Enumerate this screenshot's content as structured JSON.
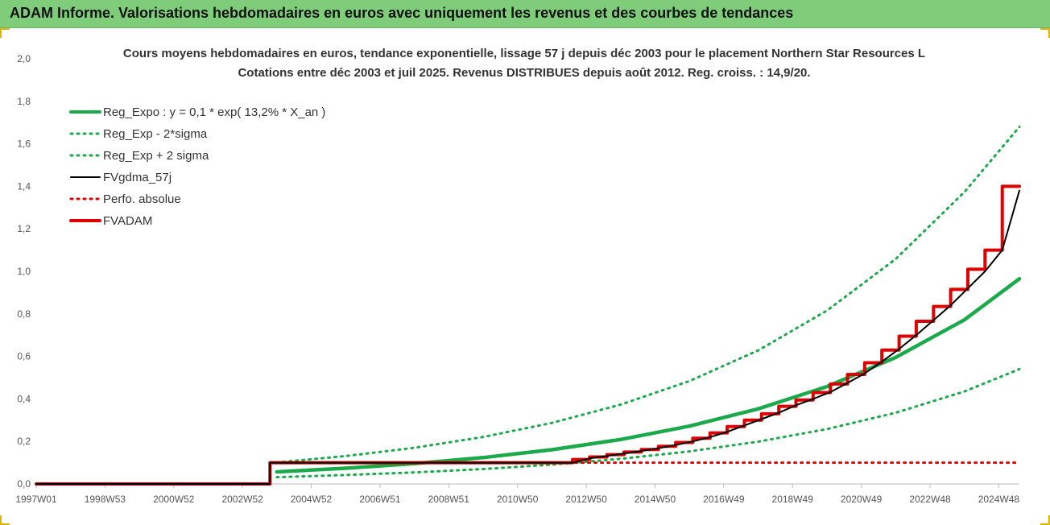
{
  "header": {
    "title": "ADAM Informe. Valorisations hebdomadaires en euros avec uniquement les revenus et des courbes de tendances",
    "background": "#7fcd7a"
  },
  "chart_data": {
    "type": "line",
    "title": "Cours moyens hebdomadaires en euros, tendance exponentielle, lissage 57 j depuis déc 2003 pour le placement Northern Star Resources L",
    "subtitle": "Cotations entre déc 2003 et juil 2025. Revenus DISTRIBUES depuis août 2012. Reg. croiss. : 14,9/20.",
    "xlabel": "",
    "ylabel": "",
    "ylim": [
      0,
      2.0
    ],
    "yticks": [
      "0,0",
      "0,2",
      "0,4",
      "0,6",
      "0,8",
      "1,0",
      "1,2",
      "1,4",
      "1,6",
      "1,8",
      "2,0"
    ],
    "xlim": [
      1997.0,
      2025.6
    ],
    "xticks": [
      {
        "label": "1997W01",
        "x": 1997.0
      },
      {
        "label": "1998W53",
        "x": 1999.0
      },
      {
        "label": "2000W52",
        "x": 2001.0
      },
      {
        "label": "2002W52",
        "x": 2003.0
      },
      {
        "label": "2004W52",
        "x": 2005.0
      },
      {
        "label": "2006W51",
        "x": 2007.0
      },
      {
        "label": "2008W51",
        "x": 2009.0
      },
      {
        "label": "2010W50",
        "x": 2011.0
      },
      {
        "label": "2012W50",
        "x": 2013.0
      },
      {
        "label": "2014W50",
        "x": 2015.0
      },
      {
        "label": "2016W49",
        "x": 2017.0
      },
      {
        "label": "2018W49",
        "x": 2019.0
      },
      {
        "label": "2020W49",
        "x": 2021.0
      },
      {
        "label": "2022W48",
        "x": 2023.0
      },
      {
        "label": "2024W48",
        "x": 2025.0
      }
    ],
    "grid": false,
    "legend_position": "top-left",
    "series": [
      {
        "name": "Reg_Expo : y = 0,1 * exp( 13,2% *  X_an )",
        "color": "#1aaa4a",
        "style": "solid-thick",
        "x": [
          2004.0,
          2006.0,
          2008.0,
          2010.0,
          2012.0,
          2014.0,
          2016.0,
          2018.0,
          2020.0,
          2022.0,
          2024.0,
          2025.6
        ],
        "y": [
          0.057,
          0.074,
          0.096,
          0.124,
          0.161,
          0.209,
          0.272,
          0.353,
          0.458,
          0.595,
          0.772,
          0.965
        ]
      },
      {
        "name": "Reg_Exp - 2*sigma",
        "color": "#1aaa4a",
        "style": "dotted",
        "x": [
          2004.0,
          2006.0,
          2008.0,
          2010.0,
          2012.0,
          2014.0,
          2016.0,
          2018.0,
          2020.0,
          2022.0,
          2024.0,
          2025.6
        ],
        "y": [
          0.032,
          0.042,
          0.054,
          0.07,
          0.091,
          0.118,
          0.153,
          0.199,
          0.258,
          0.335,
          0.435,
          0.54
        ]
      },
      {
        "name": "Reg_Exp + 2 sigma",
        "color": "#1aaa4a",
        "style": "dotted",
        "x": [
          2004.0,
          2006.0,
          2008.0,
          2010.0,
          2012.0,
          2014.0,
          2016.0,
          2018.0,
          2020.0,
          2022.0,
          2024.0,
          2025.6
        ],
        "y": [
          0.101,
          0.131,
          0.17,
          0.221,
          0.287,
          0.373,
          0.484,
          0.628,
          0.815,
          1.058,
          1.373,
          1.68
        ]
      },
      {
        "name": "FVgdma_57j",
        "color": "#000000",
        "style": "solid",
        "x": [
          1997.0,
          2003.8,
          2003.8,
          2012.6,
          2013.1,
          2013.6,
          2014.1,
          2014.6,
          2015.1,
          2015.6,
          2016.1,
          2016.6,
          2017.1,
          2017.6,
          2018.1,
          2018.6,
          2019.1,
          2019.6,
          2020.1,
          2020.6,
          2021.1,
          2021.6,
          2022.1,
          2022.6,
          2023.1,
          2023.6,
          2024.1,
          2024.6,
          2025.1,
          2025.6
        ],
        "y": [
          0.0,
          0.0,
          0.1,
          0.1,
          0.12,
          0.132,
          0.143,
          0.155,
          0.168,
          0.183,
          0.2,
          0.22,
          0.245,
          0.275,
          0.305,
          0.335,
          0.37,
          0.4,
          0.432,
          0.475,
          0.52,
          0.575,
          0.635,
          0.7,
          0.77,
          0.84,
          0.92,
          1.0,
          1.1,
          1.38
        ]
      },
      {
        "name": "Perfo. absolue",
        "color": "#e00000",
        "style": "dotted",
        "x": [
          1997.0,
          2003.8,
          2003.8,
          2012.6,
          2025.6
        ],
        "y": [
          0.0,
          0.0,
          0.1,
          0.1,
          0.1
        ]
      },
      {
        "name": "FVADAM",
        "color": "#e00000",
        "style": "step-thick",
        "x": [
          1997.0,
          2003.8,
          2003.8,
          2012.6,
          2012.6,
          2013.1,
          2013.1,
          2013.6,
          2013.6,
          2014.1,
          2014.1,
          2014.6,
          2014.6,
          2015.1,
          2015.1,
          2015.6,
          2015.6,
          2016.1,
          2016.1,
          2016.6,
          2016.6,
          2017.1,
          2017.1,
          2017.6,
          2017.6,
          2018.1,
          2018.1,
          2018.6,
          2018.6,
          2019.1,
          2019.1,
          2019.6,
          2019.6,
          2020.1,
          2020.1,
          2020.6,
          2020.6,
          2021.1,
          2021.1,
          2021.6,
          2021.6,
          2022.1,
          2022.1,
          2022.6,
          2022.6,
          2023.1,
          2023.1,
          2023.6,
          2023.6,
          2024.1,
          2024.1,
          2024.6,
          2024.6,
          2025.1,
          2025.1,
          2025.6
        ],
        "y": [
          0.0,
          0.0,
          0.1,
          0.1,
          0.115,
          0.115,
          0.127,
          0.127,
          0.138,
          0.138,
          0.15,
          0.15,
          0.162,
          0.162,
          0.177,
          0.177,
          0.195,
          0.195,
          0.215,
          0.215,
          0.24,
          0.24,
          0.27,
          0.27,
          0.3,
          0.3,
          0.33,
          0.33,
          0.365,
          0.365,
          0.395,
          0.395,
          0.43,
          0.43,
          0.47,
          0.47,
          0.515,
          0.515,
          0.57,
          0.57,
          0.63,
          0.63,
          0.695,
          0.695,
          0.765,
          0.765,
          0.835,
          0.835,
          0.915,
          0.915,
          1.01,
          1.01,
          1.1,
          1.1,
          1.4,
          1.4
        ]
      }
    ]
  }
}
